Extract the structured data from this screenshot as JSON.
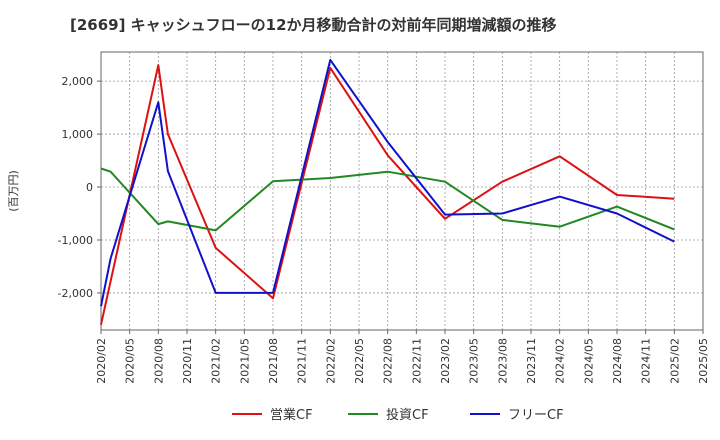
{
  "chart_data": {
    "type": "line",
    "title": "[2669]  キャッシュフローの12か月移動合計の対前年同期増減額の推移",
    "ylabel": "(百万円)",
    "xlabel": "",
    "ylim": [
      -2700,
      2550
    ],
    "yticks": [
      2000,
      1000,
      0,
      -1000,
      -2000
    ],
    "ytick_labels": [
      "2,000",
      "1,000",
      "0",
      "-1,000",
      "-2,000"
    ],
    "xtick_labels": [
      "2020/02",
      "2020/05",
      "2020/08",
      "2020/11",
      "2021/02",
      "2021/05",
      "2021/08",
      "2021/11",
      "2022/02",
      "2022/05",
      "2022/08",
      "2022/11",
      "2023/02",
      "2023/05",
      "2023/08",
      "2023/11",
      "2024/02",
      "2024/05",
      "2024/08",
      "2024/11",
      "2025/02",
      "2025/05"
    ],
    "grid": true,
    "legend_position": "bottom",
    "series": [
      {
        "name": "営業CF",
        "color": "#dd1111",
        "points": [
          [
            "2020/02",
            -2600
          ],
          [
            "2020/08",
            2300
          ],
          [
            "2020/09",
            1000
          ],
          [
            "2021/02",
            -1150
          ],
          [
            "2021/08",
            -2100
          ],
          [
            "2022/02",
            2250
          ],
          [
            "2022/08",
            600
          ],
          [
            "2023/02",
            -600
          ],
          [
            "2023/08",
            100
          ],
          [
            "2024/02",
            580
          ],
          [
            "2024/08",
            -150
          ],
          [
            "2025/02",
            -220
          ]
        ]
      },
      {
        "name": "投資CF",
        "color": "#228822",
        "points": [
          [
            "2020/02",
            350
          ],
          [
            "2020/03",
            290
          ],
          [
            "2020/08",
            -700
          ],
          [
            "2020/09",
            -650
          ],
          [
            "2021/02",
            -820
          ],
          [
            "2021/08",
            110
          ],
          [
            "2022/02",
            170
          ],
          [
            "2022/08",
            290
          ],
          [
            "2023/02",
            100
          ],
          [
            "2023/08",
            -620
          ],
          [
            "2024/02",
            -750
          ],
          [
            "2024/08",
            -370
          ],
          [
            "2025/02",
            -800
          ]
        ]
      },
      {
        "name": "フリーCF",
        "color": "#1111cc",
        "points": [
          [
            "2020/02",
            -2250
          ],
          [
            "2020/03",
            -1350
          ],
          [
            "2020/08",
            1600
          ],
          [
            "2020/09",
            300
          ],
          [
            "2021/02",
            -2000
          ],
          [
            "2021/08",
            -2000
          ],
          [
            "2022/02",
            2400
          ],
          [
            "2022/08",
            850
          ],
          [
            "2023/02",
            -520
          ],
          [
            "2023/08",
            -500
          ],
          [
            "2024/02",
            -180
          ],
          [
            "2024/08",
            -500
          ],
          [
            "2025/02",
            -1030
          ]
        ]
      }
    ]
  }
}
